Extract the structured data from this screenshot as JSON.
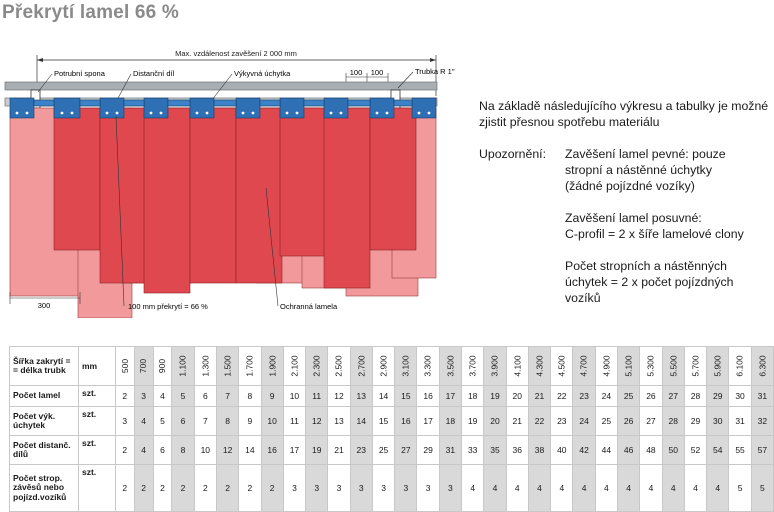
{
  "title": "Překrytí lamel 66 %",
  "drawing": {
    "max_distance": "Max. vzdálenost zavěšení 2 000 mm",
    "label_tube": "Potrubní spona",
    "label_spacer": "Distanční díl",
    "label_swivel": "Výkyvná úchytka",
    "dim_100_a": "100",
    "dim_100_b": "100",
    "label_tube_r": "Trubka R 1\"",
    "dim_300": "300",
    "label_overlap": "100 mm překrytí = 66 %",
    "label_protective": "Ochranná lamela",
    "colors": {
      "dark_lamella": "#e0484f",
      "light_lamella": "#f29a9b",
      "clip_blue": "#2f6fb3",
      "rail_gray": "#9aa0a6"
    }
  },
  "info": {
    "intro": "Na základě následujícího výkresu a tabulky je možné zjistit přesnou spotřebu materiálu",
    "notice_label": "Upozornění:",
    "notes": [
      "Zavěšení lamel pevné: pouze\nstropní a nástěnné úchytky\n(žádné pojízdné vozíky)",
      "Zavěšení lamel posuvné:\nC-profil = 2 x šíře lamelové clony",
      "Počet stropních a nástěnných\núchytek = 2 x počet pojízdných\nvozíků"
    ]
  },
  "table": {
    "header_label": "Šířka zakrytí =\n= délka trubk",
    "header_unit": "mm",
    "widths": [
      "500",
      "700",
      "900",
      "1.100",
      "1.300",
      "1.500",
      "1.700",
      "1.900",
      "2.100",
      "2.300",
      "2.500",
      "2.700",
      "2.900",
      "3.100",
      "3.300",
      "3.500",
      "3.700",
      "3.900",
      "4.100",
      "4.300",
      "4.500",
      "4.700",
      "4.900",
      "5.100",
      "5.300",
      "5.500",
      "5.700",
      "5.900",
      "6.100",
      "6.300"
    ],
    "rows": [
      {
        "label": "Počet lamel",
        "unit": "szt.",
        "values": [
          "2",
          "3",
          "4",
          "5",
          "6",
          "7",
          "8",
          "9",
          "10",
          "11",
          "12",
          "13",
          "14",
          "15",
          "16",
          "17",
          "18",
          "19",
          "20",
          "21",
          "22",
          "23",
          "24",
          "25",
          "26",
          "27",
          "28",
          "29",
          "30",
          "31"
        ]
      },
      {
        "label": "Počet výk.\núchytek",
        "unit": "szt.",
        "values": [
          "3",
          "4",
          "5",
          "6",
          "7",
          "8",
          "9",
          "10",
          "11",
          "12",
          "13",
          "14",
          "15",
          "16",
          "17",
          "18",
          "19",
          "20",
          "21",
          "22",
          "23",
          "24",
          "25",
          "26",
          "27",
          "28",
          "29",
          "30",
          "31",
          "32"
        ]
      },
      {
        "label": "Počet distanč.\ndílů",
        "unit": "szt.",
        "values": [
          "2",
          "4",
          "6",
          "8",
          "10",
          "12",
          "14",
          "16",
          "17",
          "19",
          "21",
          "23",
          "25",
          "27",
          "29",
          "31",
          "33",
          "35",
          "36",
          "38",
          "40",
          "42",
          "44",
          "46",
          "48",
          "50",
          "52",
          "54",
          "55",
          "57"
        ]
      },
      {
        "label": "Počet strop.\nzávěsů nebo\npojízd.vozíků",
        "unit": "szt.",
        "values": [
          "2",
          "2",
          "2",
          "2",
          "2",
          "2",
          "2",
          "2",
          "3",
          "3",
          "3",
          "3",
          "3",
          "3",
          "3",
          "3",
          "4",
          "4",
          "4",
          "4",
          "4",
          "4",
          "4",
          "4",
          "4",
          "4",
          "4",
          "4",
          "5",
          "5"
        ]
      }
    ]
  }
}
